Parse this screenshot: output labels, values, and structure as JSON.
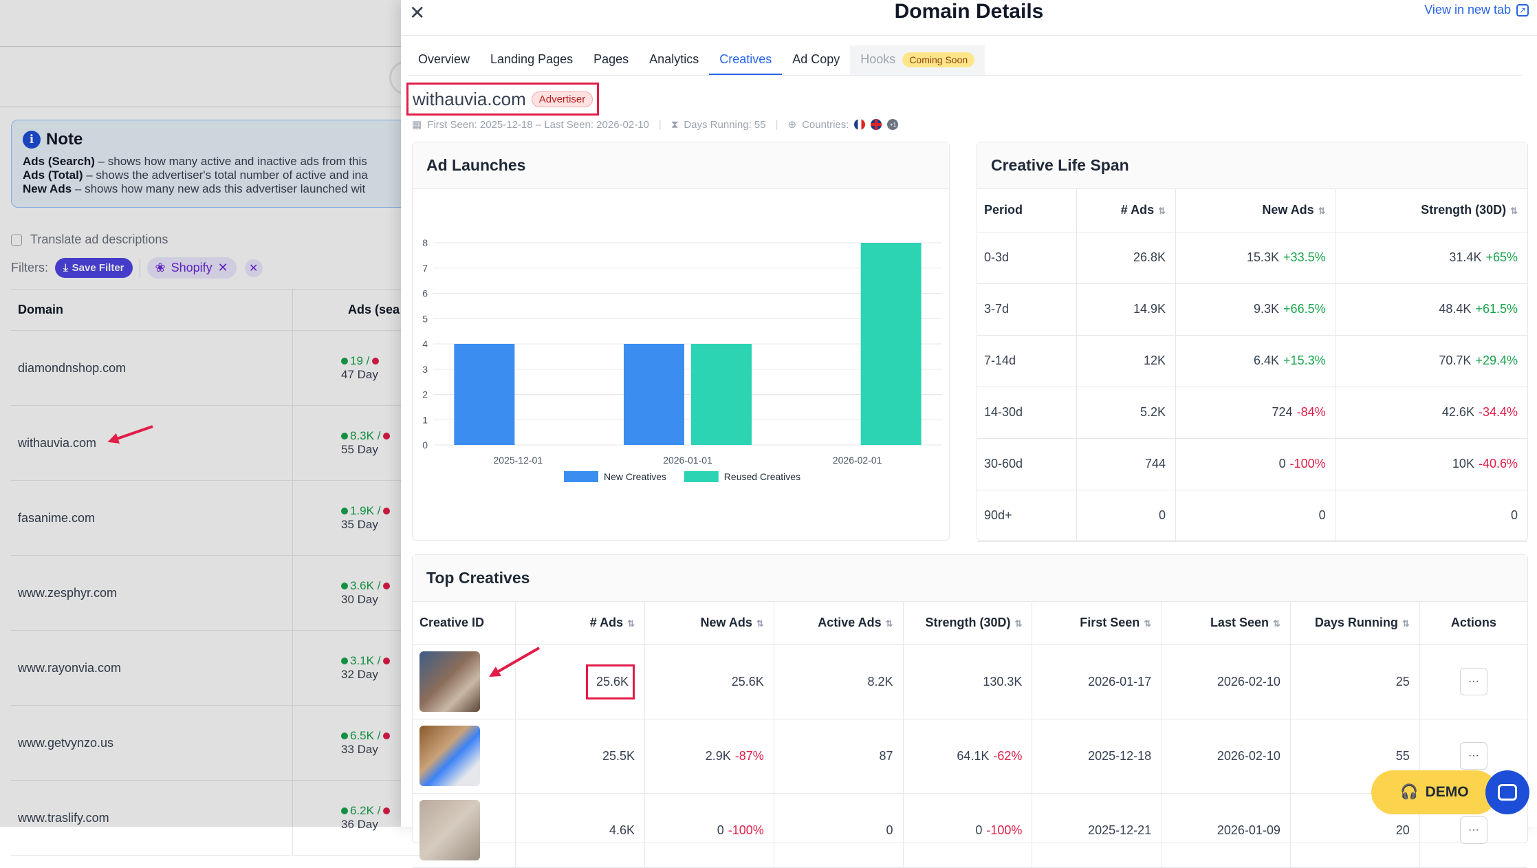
{
  "background": {
    "note": {
      "title": "Note",
      "lines": [
        {
          "term": "Ads (Search)",
          "text": " – shows how many active and inactive ads from this"
        },
        {
          "term": "Ads (Total)",
          "text": " – shows the advertiser's total number of active and ina"
        },
        {
          "term": "New Ads",
          "text": " – shows how many new ads this advertiser launched wit"
        }
      ]
    },
    "translate_label": "Translate ad descriptions",
    "filters_label": "Filters:",
    "save_filter_label": "Save Filter",
    "chip_label": "Shopify",
    "table_headers": [
      "Domain",
      "Ads (sea"
    ],
    "rows": [
      {
        "domain": "diamondnshop.com",
        "ads": "19 /",
        "days": "47 Day"
      },
      {
        "domain": "withauvia.com",
        "ads": "8.3K /",
        "days": "55 Day"
      },
      {
        "domain": "fasanime.com",
        "ads": "1.9K /",
        "days": "35 Day"
      },
      {
        "domain": "www.zesphyr.com",
        "ads": "3.6K /",
        "days": "30 Day"
      },
      {
        "domain": "www.rayonvia.com",
        "ads": "3.1K /",
        "days": "32 Day"
      },
      {
        "domain": "www.getvynzo.us",
        "ads": "6.5K /",
        "days": "33 Day"
      },
      {
        "domain": "www.traslify.com",
        "ads": "6.2K /",
        "days": "36 Day"
      }
    ]
  },
  "modal": {
    "title": "Domain Details",
    "view_new_tab": "View in new tab",
    "tabs": [
      "Overview",
      "Landing Pages",
      "Pages",
      "Analytics",
      "Creatives",
      "Ad Copy",
      "Hooks"
    ],
    "active_tab": "Creatives",
    "coming_soon": "Coming Soon",
    "domain": "withauvia.com",
    "badge": "Advertiser",
    "meta": {
      "seen": "First Seen: 2025-12-18 – Last Seen: 2026-02-10",
      "days_running": "Days Running: 55",
      "countries_label": "Countries:",
      "more_countries": "+1"
    }
  },
  "ad_launches": {
    "title": "Ad Launches",
    "chart_data": {
      "type": "bar",
      "categories": [
        "2025-12-01",
        "2026-01-01",
        "2026-02-01"
      ],
      "series": [
        {
          "name": "New Creatives",
          "values": [
            4,
            4,
            0
          ],
          "color": "#3b8ef0"
        },
        {
          "name": "Reused Creatives",
          "values": [
            0,
            4,
            8
          ],
          "color": "#2dd4b4"
        }
      ],
      "ylim": [
        0,
        8
      ],
      "yticks": [
        0,
        1,
        2,
        3,
        4,
        5,
        6,
        7,
        8
      ],
      "grid": true,
      "legend": "bottom"
    }
  },
  "lifespan": {
    "title": "Creative Life Span",
    "headers": [
      "Period",
      "# Ads",
      "New Ads",
      "Strength (30D)"
    ],
    "rows": [
      {
        "period": "0-3d",
        "ads": "26.8K",
        "new": "15.3K",
        "new_change": "+33.5%",
        "new_dir": "pos",
        "strength": "31.4K",
        "str_change": "+65%",
        "str_dir": "pos"
      },
      {
        "period": "3-7d",
        "ads": "14.9K",
        "new": "9.3K",
        "new_change": "+66.5%",
        "new_dir": "pos",
        "strength": "48.4K",
        "str_change": "+61.5%",
        "str_dir": "pos"
      },
      {
        "period": "7-14d",
        "ads": "12K",
        "new": "6.4K",
        "new_change": "+15.3%",
        "new_dir": "pos",
        "strength": "70.7K",
        "str_change": "+29.4%",
        "str_dir": "pos"
      },
      {
        "period": "14-30d",
        "ads": "5.2K",
        "new": "724",
        "new_change": "-84%",
        "new_dir": "neg",
        "strength": "42.6K",
        "str_change": "-34.4%",
        "str_dir": "neg"
      },
      {
        "period": "30-60d",
        "ads": "744",
        "new": "0",
        "new_change": "-100%",
        "new_dir": "neg",
        "strength": "10K",
        "str_change": "-40.6%",
        "str_dir": "neg"
      },
      {
        "period": "90d+",
        "ads": "0",
        "new": "0",
        "new_change": "",
        "new_dir": "",
        "strength": "0",
        "str_change": "",
        "str_dir": ""
      }
    ]
  },
  "top_creatives": {
    "title": "Top Creatives",
    "headers": [
      "Creative ID",
      "# Ads",
      "New Ads",
      "Active Ads",
      "Strength (30D)",
      "First Seen",
      "Last Seen",
      "Days Running",
      "Actions"
    ],
    "rows": [
      {
        "ads": "25.6K",
        "new": "25.6K",
        "new_change": "",
        "active": "8.2K",
        "strength": "130.3K",
        "str_change": "",
        "first": "2026-01-17",
        "last": "2026-02-10",
        "days": "25"
      },
      {
        "ads": "25.5K",
        "new": "2.9K",
        "new_change": "-87%",
        "active": "87",
        "strength": "64.1K",
        "str_change": "-62%",
        "first": "2025-12-18",
        "last": "2026-02-10",
        "days": "55"
      },
      {
        "ads": "4.6K",
        "new": "0",
        "new_change": "-100%",
        "active": "0",
        "strength": "0",
        "str_change": "-100%",
        "first": "2025-12-21",
        "last": "2026-01-09",
        "days": "20"
      }
    ]
  },
  "widgets": {
    "demo_label": "DEMO"
  }
}
